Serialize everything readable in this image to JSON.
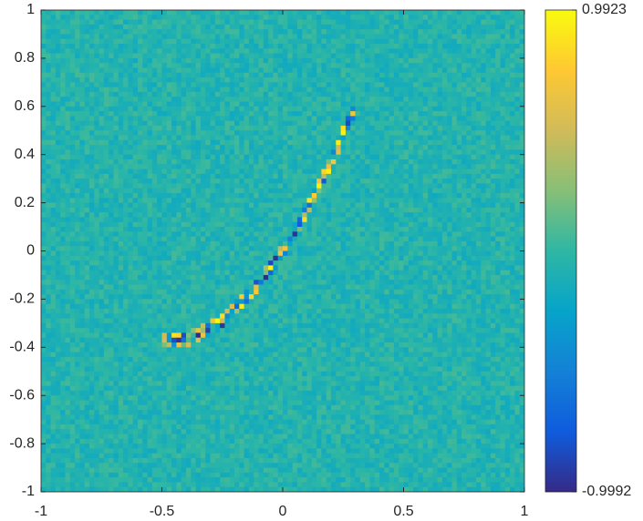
{
  "chart_data": {
    "type": "heatmap",
    "xlim": [
      -1,
      1
    ],
    "xticks": [
      -1,
      -0.5,
      0,
      0.5,
      1
    ],
    "ylim": [
      -1,
      1
    ],
    "yticks": [
      -1,
      -0.8,
      -0.6,
      -0.4,
      -0.2,
      0,
      0.2,
      0.4,
      0.6,
      0.8,
      1
    ],
    "colorbar": {
      "lim": [
        -0.9992,
        0.9923
      ],
      "ticks": [
        -0.9992,
        0.9923
      ],
      "colors": [
        "#352a87",
        "#0f5cdd",
        "#1481d6",
        "#06a4ca",
        "#2eb7a4",
        "#87bf77",
        "#d1bb59",
        "#fec832",
        "#f9fb0e"
      ]
    }
  }
}
